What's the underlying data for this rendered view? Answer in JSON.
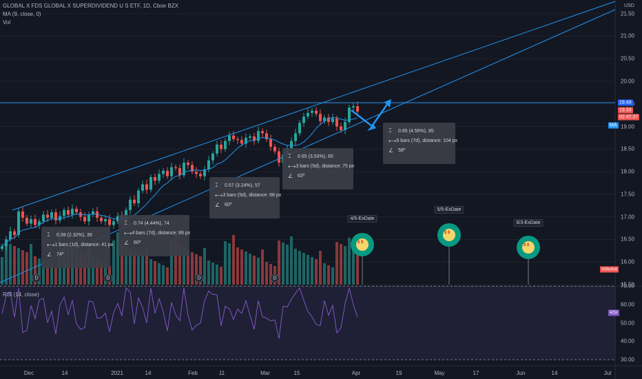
{
  "header": {
    "title": "GLOBAL X FDS GLOBAL X SUPERDIVIDEND U S ETF, 1D, Cboe BZX",
    "ma_label": "MA (9, close, 0)",
    "vol_label": "Vol",
    "currency": "USD"
  },
  "rsi": {
    "label": "RSI (14, close)",
    "badge": "RSI"
  },
  "badges": {
    "price_top": "19.49",
    "price_last": "19.33",
    "countdown": "02:42:37",
    "ma": "MA",
    "volume": "Volume"
  },
  "colors": {
    "up": "#26a69a",
    "down": "#ef5350",
    "line": "#2196f3",
    "rsi": "#7e57c2",
    "ma": "#2196f3"
  },
  "tooltips": [
    {
      "change": "0.39 (2.32%), 39",
      "bars": "1 bars (1d), distance: 41 px",
      "angle": "74º"
    },
    {
      "change": "0.74 (4.44%), 74",
      "bars": "4 bars (7d), distance: 89 px",
      "angle": "60º"
    },
    {
      "change": "0.57 (3.24%), 57",
      "bars": "3 bars (5d), distance: 68 px",
      "angle": "60º"
    },
    {
      "change": "0.65 (3.53%), 65",
      "bars": "3 bars (5d), distance: 75 px",
      "angle": "63º"
    },
    {
      "change": "0.85 (4.56%), 85",
      "bars": "5 bars (7d), distance: 104 px",
      "angle": "58º"
    }
  ],
  "exdates": [
    "4/5-ExDate",
    "5/5-ExDate",
    "6/3-ExDate"
  ],
  "dividend_marker": "D",
  "chart_data": [
    {
      "type": "candlestick",
      "title": "GLOBAL X FDS GLOBAL X SUPERDIVIDEND U S ETF, 1D, Cboe BZX",
      "ylabel": "USD",
      "ylim": [
        15.5,
        21.8
      ],
      "y_ticks": [
        "21.50",
        "21.00",
        "20.50",
        "20.00",
        "19.50",
        "19.00",
        "18.50",
        "18.00",
        "17.50",
        "17.00",
        "16.50",
        "16.00",
        "15.50"
      ],
      "x_ticks": [
        "Dec",
        "14",
        "2021",
        "14",
        "Feb",
        "11",
        "Mar",
        "15",
        "Apr",
        "19",
        "May",
        "17",
        "Jun",
        "14",
        "Jul"
      ],
      "close": [
        16.35,
        16.5,
        16.68,
        16.6,
        17.12,
        16.98,
        16.85,
        16.95,
        16.82,
        16.9,
        17.05,
        16.98,
        17.1,
        16.92,
        17.02,
        17.15,
        17.05,
        17.18,
        17.1,
        17.0,
        16.9,
        17.05,
        17.12,
        16.98,
        16.9,
        16.95,
        16.82,
        16.9,
        17.02,
        16.92,
        17.15,
        17.38,
        17.3,
        17.58,
        17.72,
        17.6,
        17.88,
        17.8,
        17.95,
        18.02,
        17.9,
        18.1,
        18.08,
        17.92,
        18.2,
        18.15,
        18.0,
        17.95,
        17.9,
        18.05,
        18.25,
        18.4,
        18.6,
        18.5,
        18.68,
        18.8,
        18.72,
        18.7,
        18.62,
        18.75,
        18.78,
        18.68,
        18.9,
        18.85,
        18.72,
        18.55,
        18.45,
        18.2,
        18.38,
        18.52,
        18.68,
        18.85,
        19.08,
        19.22,
        19.3,
        19.35,
        19.28,
        19.12,
        19.2,
        19.1,
        19.18,
        19.0,
        18.92,
        19.1,
        19.42,
        19.45,
        19.33
      ],
      "volume_ylim": [
        0,
        60
      ],
      "rsi_ylim": [
        30,
        72
      ],
      "rsi_ticks": [
        "70.00",
        "60.00",
        "50.00",
        "40.00",
        "30.00"
      ],
      "annotations": [
        "4/5-ExDate",
        "5/5-ExDate",
        "6/3-ExDate"
      ]
    }
  ]
}
